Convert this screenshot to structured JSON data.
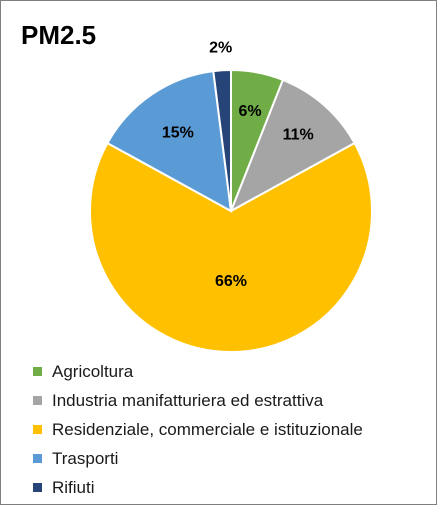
{
  "title": "PM2.5",
  "chart_data": {
    "type": "pie",
    "title": "PM2.5",
    "start_angle_deg": 0,
    "direction": "clockwise",
    "legend_position": "bottom",
    "slices": [
      {
        "name": "Agricoltura",
        "value": 6,
        "label": "6%",
        "color": "#70AD47"
      },
      {
        "name": "Industria manifatturiera ed estrattiva",
        "value": 11,
        "label": "11%",
        "color": "#A5A5A5"
      },
      {
        "name": "Residenziale, commerciale e istituzionale",
        "value": 66,
        "label": "66%",
        "color": "#FFC000"
      },
      {
        "name": "Trasporti",
        "value": 15,
        "label": "15%",
        "color": "#5B9BD5"
      },
      {
        "name": "Rifiuti",
        "value": 2,
        "label": "2%",
        "color": "#264478"
      }
    ]
  }
}
